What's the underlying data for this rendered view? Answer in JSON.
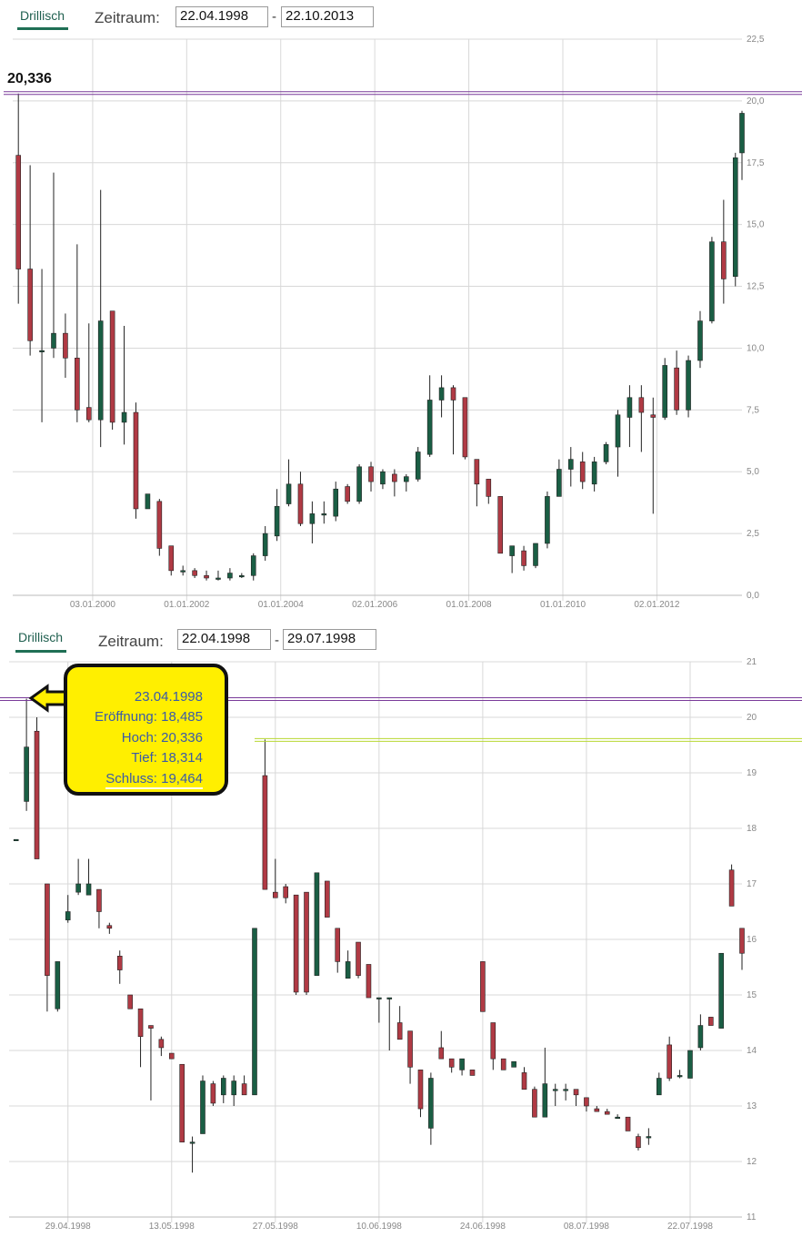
{
  "panels": [
    {
      "tab_label": "Drillisch",
      "zeitraum_label": "Zeitraum:",
      "date_from": "22.04.1998",
      "date_to": "22.10.2013",
      "dash": "-",
      "max_label": "20,336"
    },
    {
      "tab_label": "Drillisch",
      "zeitraum_label": "Zeitraum:",
      "date_from": "22.04.1998",
      "date_to": "29.07.1998",
      "dash": "-"
    }
  ],
  "tooltip": {
    "date": "23.04.1998",
    "open": "Eröffnung: 18,485",
    "high": "Hoch: 20,336",
    "low": "Tief: 18,314",
    "close": "Schluss: 19,464"
  },
  "colors": {
    "up": "#1a5e44",
    "down": "#b03a44",
    "grid": "#d8d8d8",
    "line_purple": "#7a3b9a",
    "line_green": "#b8d832",
    "tooltip_bg": "#ffef00"
  },
  "chart_data": [
    {
      "type": "candlestick",
      "period": "quarterly",
      "ylim": [
        0,
        22.5
      ],
      "yticks": [
        "0,0",
        "2,5",
        "5,0",
        "7,5",
        "10,0",
        "12,5",
        "15,0",
        "17,5",
        "20,0",
        "22,5"
      ],
      "xticks": [
        "03.01.2000",
        "01.01.2002",
        "01.01.2004",
        "02.01.2006",
        "01.01.2008",
        "01.01.2010",
        "02.01.2012"
      ],
      "xtick_years": [
        2000.0,
        2002.0,
        2004.0,
        2006.0,
        2008.0,
        2010.0,
        2012.0
      ],
      "xlim_years": [
        1998.3,
        2013.81
      ],
      "hline": 20.336,
      "candles": [
        {
          "t": 1998.42,
          "o": 17.8,
          "h": 20.3,
          "l": 11.8,
          "c": 13.2
        },
        {
          "t": 1998.67,
          "o": 13.2,
          "h": 17.4,
          "l": 9.7,
          "c": 10.3
        },
        {
          "t": 1998.92,
          "o": 9.9,
          "h": 13.2,
          "l": 7.0,
          "c": 9.9
        },
        {
          "t": 1999.17,
          "o": 10.0,
          "h": 17.1,
          "l": 9.6,
          "c": 10.6
        },
        {
          "t": 1999.42,
          "o": 10.6,
          "h": 11.4,
          "l": 8.8,
          "c": 9.6
        },
        {
          "t": 1999.67,
          "o": 9.6,
          "h": 14.2,
          "l": 7.0,
          "c": 7.5
        },
        {
          "t": 1999.92,
          "o": 7.6,
          "h": 11.0,
          "l": 7.0,
          "c": 7.1
        },
        {
          "t": 2000.17,
          "o": 7.1,
          "h": 16.4,
          "l": 6.0,
          "c": 11.1
        },
        {
          "t": 2000.42,
          "o": 11.5,
          "h": 11.5,
          "l": 6.7,
          "c": 7.0
        },
        {
          "t": 2000.67,
          "o": 7.0,
          "h": 10.9,
          "l": 6.1,
          "c": 7.4
        },
        {
          "t": 2000.92,
          "o": 7.4,
          "h": 7.8,
          "l": 3.1,
          "c": 3.5
        },
        {
          "t": 2001.17,
          "o": 3.5,
          "h": 4.0,
          "l": 3.5,
          "c": 4.1
        },
        {
          "t": 2001.42,
          "o": 3.8,
          "h": 3.9,
          "l": 1.6,
          "c": 1.9
        },
        {
          "t": 2001.67,
          "o": 2.0,
          "h": 2.0,
          "l": 0.8,
          "c": 1.0
        },
        {
          "t": 2001.92,
          "o": 1.0,
          "h": 1.2,
          "l": 0.8,
          "c": 1.0
        },
        {
          "t": 2002.17,
          "o": 1.0,
          "h": 1.1,
          "l": 0.7,
          "c": 0.8
        },
        {
          "t": 2002.42,
          "o": 0.8,
          "h": 1.0,
          "l": 0.6,
          "c": 0.7
        },
        {
          "t": 2002.67,
          "o": 0.7,
          "h": 1.0,
          "l": 0.6,
          "c": 0.7
        },
        {
          "t": 2002.92,
          "o": 0.7,
          "h": 1.1,
          "l": 0.6,
          "c": 0.9
        },
        {
          "t": 2003.17,
          "o": 0.8,
          "h": 0.9,
          "l": 0.7,
          "c": 0.8
        },
        {
          "t": 2003.42,
          "o": 0.8,
          "h": 1.7,
          "l": 0.6,
          "c": 1.6
        },
        {
          "t": 2003.67,
          "o": 1.6,
          "h": 2.8,
          "l": 1.4,
          "c": 2.5
        },
        {
          "t": 2003.92,
          "o": 2.4,
          "h": 4.3,
          "l": 2.2,
          "c": 3.6
        },
        {
          "t": 2004.17,
          "o": 3.7,
          "h": 5.5,
          "l": 3.6,
          "c": 4.5
        },
        {
          "t": 2004.42,
          "o": 4.5,
          "h": 5.0,
          "l": 2.8,
          "c": 2.9
        },
        {
          "t": 2004.67,
          "o": 2.9,
          "h": 3.8,
          "l": 2.1,
          "c": 3.3
        },
        {
          "t": 2004.92,
          "o": 3.3,
          "h": 3.8,
          "l": 2.9,
          "c": 3.3
        },
        {
          "t": 2005.17,
          "o": 3.2,
          "h": 4.6,
          "l": 3.0,
          "c": 4.3
        },
        {
          "t": 2005.42,
          "o": 4.4,
          "h": 4.5,
          "l": 3.7,
          "c": 3.8
        },
        {
          "t": 2005.67,
          "o": 3.8,
          "h": 5.3,
          "l": 3.7,
          "c": 5.2
        },
        {
          "t": 2005.92,
          "o": 5.2,
          "h": 5.4,
          "l": 4.2,
          "c": 4.6
        },
        {
          "t": 2006.17,
          "o": 4.5,
          "h": 5.1,
          "l": 4.3,
          "c": 5.0
        },
        {
          "t": 2006.42,
          "o": 4.9,
          "h": 5.1,
          "l": 4.0,
          "c": 4.6
        },
        {
          "t": 2006.67,
          "o": 4.6,
          "h": 4.9,
          "l": 4.2,
          "c": 4.8
        },
        {
          "t": 2006.92,
          "o": 4.7,
          "h": 6.0,
          "l": 4.6,
          "c": 5.8
        },
        {
          "t": 2007.17,
          "o": 5.7,
          "h": 8.9,
          "l": 5.6,
          "c": 7.9
        },
        {
          "t": 2007.42,
          "o": 7.9,
          "h": 8.9,
          "l": 7.2,
          "c": 8.4
        },
        {
          "t": 2007.67,
          "o": 8.4,
          "h": 8.5,
          "l": 5.7,
          "c": 7.9
        },
        {
          "t": 2007.92,
          "o": 8.0,
          "h": 8.0,
          "l": 5.5,
          "c": 5.6
        },
        {
          "t": 2008.17,
          "o": 5.5,
          "h": 5.5,
          "l": 3.6,
          "c": 4.5
        },
        {
          "t": 2008.42,
          "o": 4.7,
          "h": 4.7,
          "l": 3.7,
          "c": 4.0
        },
        {
          "t": 2008.67,
          "o": 4.0,
          "h": 4.0,
          "l": 1.8,
          "c": 1.7
        },
        {
          "t": 2008.92,
          "o": 1.6,
          "h": 2.0,
          "l": 0.9,
          "c": 2.0
        },
        {
          "t": 2009.17,
          "o": 1.8,
          "h": 2.0,
          "l": 1.0,
          "c": 1.2
        },
        {
          "t": 2009.42,
          "o": 1.2,
          "h": 2.1,
          "l": 1.1,
          "c": 2.1
        },
        {
          "t": 2009.67,
          "o": 2.1,
          "h": 4.2,
          "l": 1.9,
          "c": 4.0
        },
        {
          "t": 2009.92,
          "o": 4.0,
          "h": 5.5,
          "l": 4.0,
          "c": 5.1
        },
        {
          "t": 2010.17,
          "o": 5.1,
          "h": 6.0,
          "l": 4.4,
          "c": 5.5
        },
        {
          "t": 2010.42,
          "o": 5.4,
          "h": 5.8,
          "l": 4.3,
          "c": 4.6
        },
        {
          "t": 2010.67,
          "o": 4.5,
          "h": 5.6,
          "l": 4.2,
          "c": 5.4
        },
        {
          "t": 2010.92,
          "o": 5.4,
          "h": 6.2,
          "l": 5.3,
          "c": 6.1
        },
        {
          "t": 2011.17,
          "o": 6.0,
          "h": 7.5,
          "l": 4.8,
          "c": 7.3
        },
        {
          "t": 2011.42,
          "o": 7.2,
          "h": 8.5,
          "l": 6.0,
          "c": 8.0
        },
        {
          "t": 2011.67,
          "o": 8.0,
          "h": 8.5,
          "l": 5.8,
          "c": 7.4
        },
        {
          "t": 2011.92,
          "o": 7.3,
          "h": 8.0,
          "l": 3.3,
          "c": 7.2
        },
        {
          "t": 2012.17,
          "o": 7.2,
          "h": 9.6,
          "l": 7.1,
          "c": 9.3
        },
        {
          "t": 2012.42,
          "o": 9.2,
          "h": 9.9,
          "l": 7.3,
          "c": 7.5
        },
        {
          "t": 2012.67,
          "o": 7.5,
          "h": 9.7,
          "l": 7.2,
          "c": 9.5
        },
        {
          "t": 2012.92,
          "o": 9.5,
          "h": 11.5,
          "l": 9.2,
          "c": 11.1
        },
        {
          "t": 2013.17,
          "o": 11.1,
          "h": 14.5,
          "l": 11.0,
          "c": 14.3
        },
        {
          "t": 2013.42,
          "o": 14.3,
          "h": 16.0,
          "l": 11.8,
          "c": 12.8
        },
        {
          "t": 2013.67,
          "o": 12.9,
          "h": 17.9,
          "l": 12.5,
          "c": 17.7
        },
        {
          "t": 2013.81,
          "o": 17.9,
          "h": 19.6,
          "l": 16.8,
          "c": 19.5
        }
      ]
    },
    {
      "type": "candlestick",
      "period": "daily",
      "ylim": [
        11,
        21
      ],
      "yticks": [
        "11",
        "12",
        "13",
        "14",
        "15",
        "16",
        "17",
        "18",
        "19",
        "20",
        "21"
      ],
      "xticks": [
        "29.04.1998",
        "13.05.1998",
        "27.05.1998",
        "10.06.1998",
        "24.06.1998",
        "08.07.1998",
        "22.07.1998"
      ],
      "xtick_days": [
        5,
        15,
        25,
        35,
        45,
        55,
        65
      ],
      "xlim_days": [
        -0.5,
        70
      ],
      "hlines": [
        20.336,
        19.6
      ],
      "candles": [
        {
          "d": 0,
          "o": 17.8,
          "h": 17.8,
          "l": 17.8,
          "c": 17.8
        },
        {
          "d": 1,
          "o": 18.485,
          "h": 20.336,
          "l": 18.314,
          "c": 19.464
        },
        {
          "d": 2,
          "o": 19.75,
          "h": 20.0,
          "l": 17.5,
          "c": 17.45
        },
        {
          "d": 3,
          "o": 17.0,
          "h": 17.0,
          "l": 14.7,
          "c": 15.35
        },
        {
          "d": 4,
          "o": 14.75,
          "h": 15.6,
          "l": 14.7,
          "c": 15.6
        },
        {
          "d": 5,
          "o": 16.35,
          "h": 16.8,
          "l": 16.3,
          "c": 16.5
        },
        {
          "d": 6,
          "o": 16.85,
          "h": 17.45,
          "l": 16.8,
          "c": 17.0
        },
        {
          "d": 7,
          "o": 16.8,
          "h": 17.45,
          "l": 16.8,
          "c": 17.0
        },
        {
          "d": 8,
          "o": 16.9,
          "h": 16.9,
          "l": 16.2,
          "c": 16.5
        },
        {
          "d": 9,
          "o": 16.25,
          "h": 16.3,
          "l": 16.1,
          "c": 16.2
        },
        {
          "d": 10,
          "o": 15.7,
          "h": 15.8,
          "l": 15.2,
          "c": 15.45
        },
        {
          "d": 11,
          "o": 15.0,
          "h": 15.0,
          "l": 14.75,
          "c": 14.75
        },
        {
          "d": 12,
          "o": 14.75,
          "h": 14.75,
          "l": 13.7,
          "c": 14.25
        },
        {
          "d": 13,
          "o": 14.45,
          "h": 14.45,
          "l": 13.1,
          "c": 14.4
        },
        {
          "d": 14,
          "o": 14.2,
          "h": 14.25,
          "l": 13.9,
          "c": 14.05
        },
        {
          "d": 15,
          "o": 13.95,
          "h": 13.95,
          "l": 13.85,
          "c": 13.85
        },
        {
          "d": 16,
          "o": 13.75,
          "h": 13.75,
          "l": 12.35,
          "c": 12.35
        },
        {
          "d": 17,
          "o": 12.35,
          "h": 12.45,
          "l": 11.8,
          "c": 12.35
        },
        {
          "d": 18,
          "o": 12.5,
          "h": 13.55,
          "l": 12.5,
          "c": 13.45
        },
        {
          "d": 19,
          "o": 13.4,
          "h": 13.45,
          "l": 13.0,
          "c": 13.05
        },
        {
          "d": 20,
          "o": 13.2,
          "h": 13.55,
          "l": 13.05,
          "c": 13.5
        },
        {
          "d": 21,
          "o": 13.2,
          "h": 13.55,
          "l": 13.0,
          "c": 13.45
        },
        {
          "d": 22,
          "o": 13.4,
          "h": 13.55,
          "l": 13.2,
          "c": 13.2
        },
        {
          "d": 23,
          "o": 13.2,
          "h": 16.2,
          "l": 13.2,
          "c": 16.2
        },
        {
          "d": 24,
          "o": 18.95,
          "h": 19.6,
          "l": 16.9,
          "c": 16.9
        },
        {
          "d": 25,
          "o": 16.85,
          "h": 17.45,
          "l": 16.75,
          "c": 16.75
        },
        {
          "d": 26,
          "o": 16.95,
          "h": 17.0,
          "l": 16.65,
          "c": 16.75
        },
        {
          "d": 27,
          "o": 16.8,
          "h": 16.8,
          "l": 15.0,
          "c": 15.05
        },
        {
          "d": 28,
          "o": 16.85,
          "h": 16.85,
          "l": 15.0,
          "c": 15.05
        },
        {
          "d": 29,
          "o": 15.35,
          "h": 17.2,
          "l": 15.35,
          "c": 17.2
        },
        {
          "d": 30,
          "o": 17.05,
          "h": 17.05,
          "l": 16.4,
          "c": 16.4
        },
        {
          "d": 31,
          "o": 16.2,
          "h": 16.2,
          "l": 15.4,
          "c": 15.6
        },
        {
          "d": 32,
          "o": 15.3,
          "h": 15.8,
          "l": 15.35,
          "c": 15.6
        },
        {
          "d": 33,
          "o": 15.95,
          "h": 15.95,
          "l": 15.3,
          "c": 15.35
        },
        {
          "d": 34,
          "o": 15.55,
          "h": 15.55,
          "l": 14.95,
          "c": 14.95
        },
        {
          "d": 35,
          "o": 14.95,
          "h": 14.95,
          "l": 14.5,
          "c": 14.95
        },
        {
          "d": 36,
          "o": 14.95,
          "h": 14.95,
          "l": 14.0,
          "c": 14.95
        },
        {
          "d": 37,
          "o": 14.5,
          "h": 14.8,
          "l": 14.2,
          "c": 14.2
        },
        {
          "d": 38,
          "o": 14.35,
          "h": 14.35,
          "l": 13.4,
          "c": 13.7
        },
        {
          "d": 39,
          "o": 13.65,
          "h": 13.65,
          "l": 12.8,
          "c": 12.95
        },
        {
          "d": 40,
          "o": 12.6,
          "h": 13.6,
          "l": 12.3,
          "c": 13.5
        },
        {
          "d": 41,
          "o": 14.05,
          "h": 14.35,
          "l": 13.85,
          "c": 13.85
        },
        {
          "d": 42,
          "o": 13.85,
          "h": 13.85,
          "l": 13.6,
          "c": 13.7
        },
        {
          "d": 43,
          "o": 13.65,
          "h": 13.85,
          "l": 13.55,
          "c": 13.85
        },
        {
          "d": 44,
          "o": 13.65,
          "h": 13.65,
          "l": 13.55,
          "c": 13.55
        },
        {
          "d": 45,
          "o": 15.6,
          "h": 15.6,
          "l": 14.7,
          "c": 14.7
        },
        {
          "d": 46,
          "o": 14.5,
          "h": 14.5,
          "l": 13.65,
          "c": 13.85
        },
        {
          "d": 47,
          "o": 13.85,
          "h": 13.85,
          "l": 13.65,
          "c": 13.65
        },
        {
          "d": 48,
          "o": 13.7,
          "h": 13.8,
          "l": 13.7,
          "c": 13.8
        },
        {
          "d": 49,
          "o": 13.6,
          "h": 13.7,
          "l": 13.3,
          "c": 13.3
        },
        {
          "d": 50,
          "o": 13.3,
          "h": 13.35,
          "l": 12.8,
          "c": 12.8
        },
        {
          "d": 51,
          "o": 12.8,
          "h": 14.05,
          "l": 12.8,
          "c": 13.4
        },
        {
          "d": 52,
          "o": 13.3,
          "h": 13.4,
          "l": 13.0,
          "c": 13.3
        },
        {
          "d": 53,
          "o": 13.3,
          "h": 13.4,
          "l": 13.1,
          "c": 13.3
        },
        {
          "d": 54,
          "o": 13.3,
          "h": 13.3,
          "l": 13.0,
          "c": 13.2
        },
        {
          "d": 55,
          "o": 13.15,
          "h": 13.15,
          "l": 12.9,
          "c": 13.0
        },
        {
          "d": 56,
          "o": 12.95,
          "h": 13.0,
          "l": 12.9,
          "c": 12.9
        },
        {
          "d": 57,
          "o": 12.9,
          "h": 12.95,
          "l": 12.85,
          "c": 12.85
        },
        {
          "d": 58,
          "o": 12.8,
          "h": 12.85,
          "l": 12.8,
          "c": 12.8
        },
        {
          "d": 59,
          "o": 12.8,
          "h": 12.8,
          "l": 12.55,
          "c": 12.55
        },
        {
          "d": 60,
          "o": 12.45,
          "h": 12.5,
          "l": 12.2,
          "c": 12.25
        },
        {
          "d": 61,
          "o": 12.45,
          "h": 12.6,
          "l": 12.3,
          "c": 12.45
        },
        {
          "d": 62,
          "o": 13.2,
          "h": 13.6,
          "l": 13.2,
          "c": 13.5
        },
        {
          "d": 63,
          "o": 14.1,
          "h": 14.25,
          "l": 13.45,
          "c": 13.5
        },
        {
          "d": 64,
          "o": 13.55,
          "h": 13.65,
          "l": 13.5,
          "c": 13.55
        },
        {
          "d": 65,
          "o": 13.5,
          "h": 14.0,
          "l": 13.5,
          "c": 14.0
        },
        {
          "d": 66,
          "o": 14.05,
          "h": 14.65,
          "l": 14.0,
          "c": 14.45
        },
        {
          "d": 67,
          "o": 14.6,
          "h": 14.6,
          "l": 14.45,
          "c": 14.45
        },
        {
          "d": 68,
          "o": 14.4,
          "h": 15.75,
          "l": 14.4,
          "c": 15.75
        },
        {
          "d": 69,
          "o": 17.25,
          "h": 17.35,
          "l": 16.6,
          "c": 16.6
        },
        {
          "d": 70,
          "o": 16.2,
          "h": 16.2,
          "l": 15.45,
          "c": 15.75
        }
      ]
    }
  ]
}
